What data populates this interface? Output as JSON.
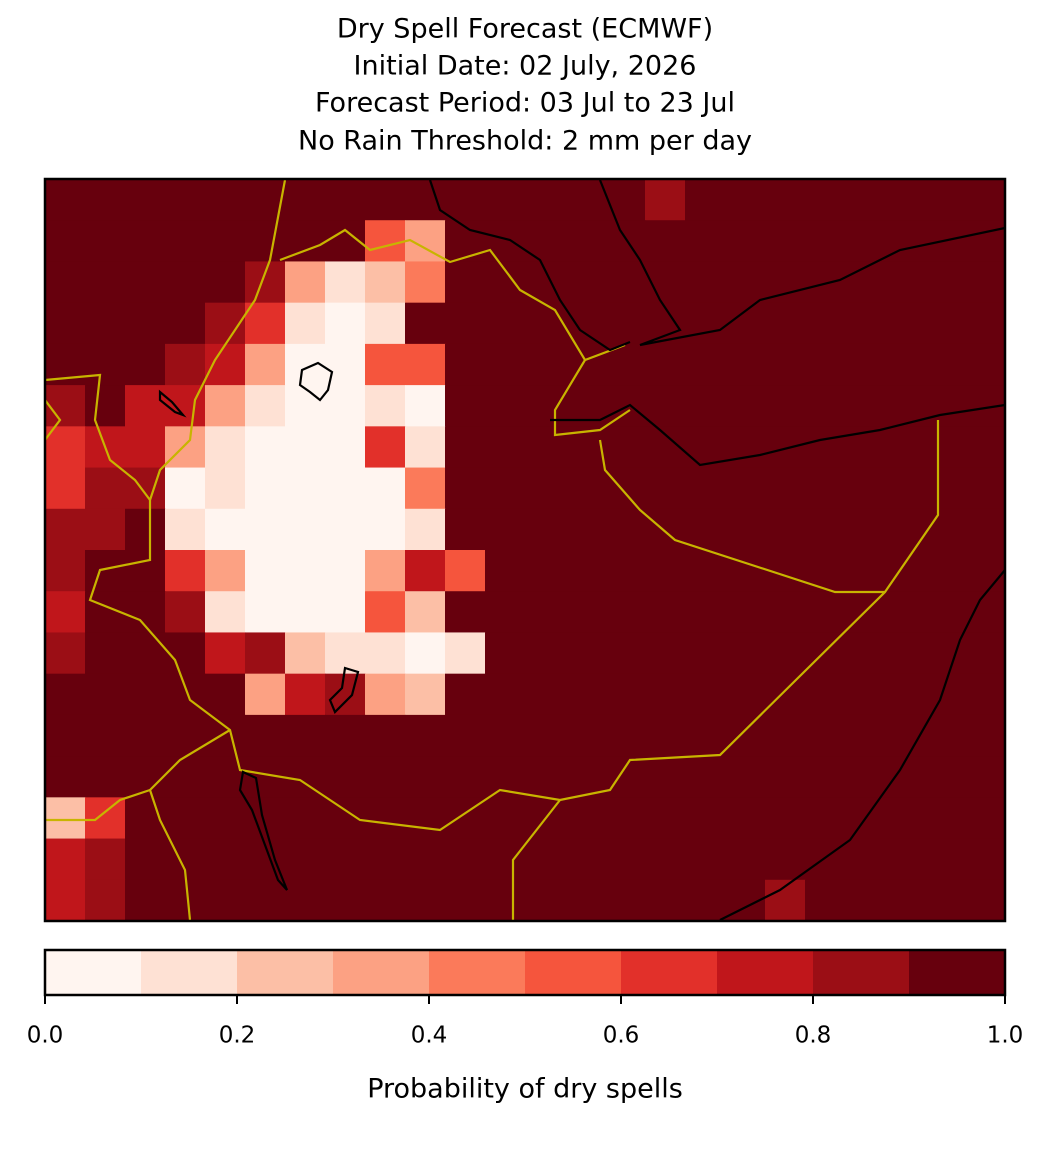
{
  "chart_data": {
    "type": "heatmap",
    "title": [
      "Dry Spell Forecast (ECMWF)",
      "Initial Date: 02 July, 2026",
      "Forecast Period: 03 Jul to 23 Jul",
      "No Rain Threshold: 2 mm per day"
    ],
    "z": [
      [
        1,
        1,
        1,
        1,
        1,
        1,
        1,
        1,
        1,
        1,
        1,
        1,
        1,
        1,
        1,
        0.8,
        1,
        1,
        1,
        1,
        1,
        1,
        1,
        1
      ],
      [
        1,
        1,
        1,
        1,
        1,
        1,
        0.9,
        0.9,
        0.5,
        0.3,
        1,
        1,
        1,
        1,
        1,
        1,
        1,
        1,
        1,
        1,
        1,
        1,
        1,
        1
      ],
      [
        1,
        1,
        1,
        1,
        0.9,
        0.8,
        0.3,
        0.1,
        0.2,
        0.4,
        1,
        1,
        1,
        1,
        1,
        1,
        1,
        0.9,
        1,
        1,
        1,
        1,
        1,
        1
      ],
      [
        1,
        1,
        1,
        0.9,
        0.8,
        0.6,
        0.1,
        0,
        0.1,
        0.9,
        1,
        1,
        1,
        1,
        1,
        1,
        1,
        1,
        1,
        1,
        1,
        1,
        1,
        1
      ],
      [
        1,
        1,
        0.9,
        0.8,
        0.7,
        0.3,
        0,
        0,
        0.5,
        0.5,
        1,
        1,
        1,
        1,
        1,
        1,
        1,
        1,
        1,
        1,
        1,
        1,
        1,
        1
      ],
      [
        0.8,
        0.9,
        0.7,
        0.7,
        0.3,
        0.1,
        0,
        0,
        0.1,
        0,
        1,
        1,
        1,
        1,
        1,
        1,
        1,
        1,
        1,
        1,
        1,
        1,
        1,
        1
      ],
      [
        0.6,
        0.7,
        0.7,
        0.3,
        0.1,
        0,
        0,
        0,
        0.6,
        0.1,
        1,
        1,
        1,
        1,
        1,
        1,
        1,
        1,
        1,
        1,
        1,
        1,
        1,
        1
      ],
      [
        0.6,
        0.8,
        0.8,
        0,
        0.1,
        0,
        0,
        0,
        0,
        0.4,
        1,
        1,
        1,
        1,
        1,
        1,
        1,
        1,
        1,
        1,
        1,
        1,
        1,
        1
      ],
      [
        0.8,
        0.8,
        0.9,
        0.1,
        0,
        0,
        0,
        0,
        0,
        0.1,
        1,
        1,
        1,
        1,
        1,
        1,
        1,
        1,
        1,
        1,
        1,
        1,
        1,
        1
      ],
      [
        0.8,
        0.9,
        0.9,
        0.6,
        0.3,
        0,
        0,
        0,
        0.3,
        0.7,
        0.5,
        1,
        1,
        1,
        1,
        1,
        1,
        1,
        1,
        1,
        1,
        1,
        1,
        1
      ],
      [
        0.7,
        0.9,
        1,
        0.8,
        0.1,
        0,
        0,
        0,
        0.5,
        0.2,
        0.9,
        1,
        1,
        1,
        1,
        1,
        1,
        1,
        1,
        1,
        1,
        1,
        1,
        1
      ],
      [
        0.8,
        1,
        1,
        1,
        0.7,
        0.8,
        0.2,
        0.1,
        0.1,
        0,
        0.1,
        1,
        1,
        1,
        1,
        1,
        1,
        1,
        1,
        1,
        1,
        1,
        1,
        1
      ],
      [
        0.9,
        1,
        1,
        1,
        1,
        0.3,
        0.7,
        0.8,
        0.3,
        0.2,
        1,
        1,
        1,
        1,
        1,
        1,
        1,
        1,
        1,
        1,
        1,
        1,
        1,
        1
      ],
      [
        1,
        1,
        1,
        1,
        1,
        1,
        1,
        1,
        1,
        1,
        1,
        1,
        1,
        1,
        1,
        1,
        1,
        1,
        1,
        1,
        1,
        1,
        1,
        1
      ],
      [
        0.9,
        1,
        1,
        1,
        1,
        1,
        1,
        1,
        1,
        1,
        1,
        1,
        1,
        1,
        1,
        1,
        1,
        1,
        1,
        1,
        1,
        1,
        1,
        1
      ],
      [
        0.2,
        0.6,
        0.9,
        1,
        1,
        1,
        1,
        1,
        1,
        1,
        1,
        1,
        1,
        1,
        1,
        1,
        1,
        1,
        1,
        1,
        1,
        1,
        1,
        1
      ],
      [
        0.7,
        0.8,
        1,
        1,
        1,
        1,
        1,
        1,
        1,
        1,
        1,
        1,
        1,
        1,
        1,
        1,
        1,
        1,
        1,
        0.9,
        1,
        1,
        1,
        1
      ],
      [
        0.7,
        0.8,
        1,
        1,
        1,
        1,
        1,
        1,
        1,
        1,
        1,
        1,
        1,
        1,
        1,
        1,
        1,
        0.9,
        0.8,
        1,
        1,
        1,
        1,
        1
      ]
    ],
    "colors": [
      "#fff5f0",
      "#fee1d4",
      "#fcbfa6",
      "#fca183",
      "#fb7a5a",
      "#f5553d",
      "#e2302a",
      "#c0161b",
      "#9b0e15",
      "#67000d"
    ],
    "clim": [
      0,
      1
    ],
    "colorbar_ticks": [
      {
        "value": 0,
        "label": "0.0"
      },
      {
        "value": 0.2,
        "label": "0.2"
      },
      {
        "value": 0.4,
        "label": "0.4"
      },
      {
        "value": 0.6,
        "label": "0.6"
      },
      {
        "value": 0.8,
        "label": "0.8"
      },
      {
        "value": 1,
        "label": "1.0"
      }
    ],
    "colorbar_label": "Probability of dry spells"
  }
}
